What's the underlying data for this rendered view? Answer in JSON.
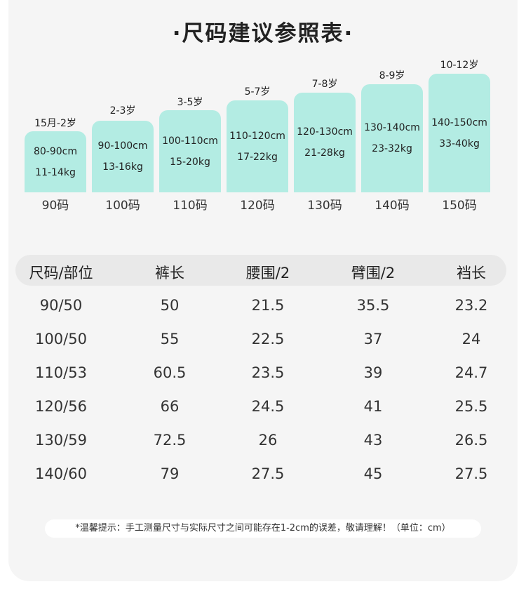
{
  "title": "·尺码建议参照表·",
  "sizes": [
    {
      "age": "15月-2岁",
      "height": "80-90cm",
      "weight": "11-14kg",
      "label": "90码"
    },
    {
      "age": "2-3岁",
      "height": "90-100cm",
      "weight": "13-16kg",
      "label": "100码"
    },
    {
      "age": "3-5岁",
      "height": "100-110cm",
      "weight": "15-20kg",
      "label": "110码"
    },
    {
      "age": "5-7岁",
      "height": "110-120cm",
      "weight": "17-22kg",
      "label": "120码"
    },
    {
      "age": "7-8岁",
      "height": "120-130cm",
      "weight": "21-28kg",
      "label": "130码"
    },
    {
      "age": "8-9岁",
      "height": "130-140cm",
      "weight": "23-32kg",
      "label": "140码"
    },
    {
      "age": "10-12岁",
      "height": "140-150cm",
      "weight": "33-40kg",
      "label": "150码"
    }
  ],
  "table": {
    "headers": [
      "尺码/部位",
      "裤长",
      "腰围/2",
      "臂围/2",
      "裆长"
    ],
    "rows": [
      [
        "90/50",
        "50",
        "21.5",
        "35.5",
        "23.2"
      ],
      [
        "100/50",
        "55",
        "22.5",
        "37",
        "24"
      ],
      [
        "110/53",
        "60.5",
        "23.5",
        "39",
        "24.7"
      ],
      [
        "120/56",
        "66",
        "24.5",
        "41",
        "25.5"
      ],
      [
        "130/59",
        "72.5",
        "26",
        "43",
        "26.5"
      ],
      [
        "140/60",
        "79",
        "27.5",
        "45",
        "27.5"
      ]
    ]
  },
  "note": "*温馨提示：手工测量尺寸与实际尺寸之间可能存在1-2cm的误差，敬请理解！（单位：cm）",
  "colors": {
    "box": "#b3ece3",
    "background": "#f5f5f5",
    "header": "#e9e9e9"
  }
}
